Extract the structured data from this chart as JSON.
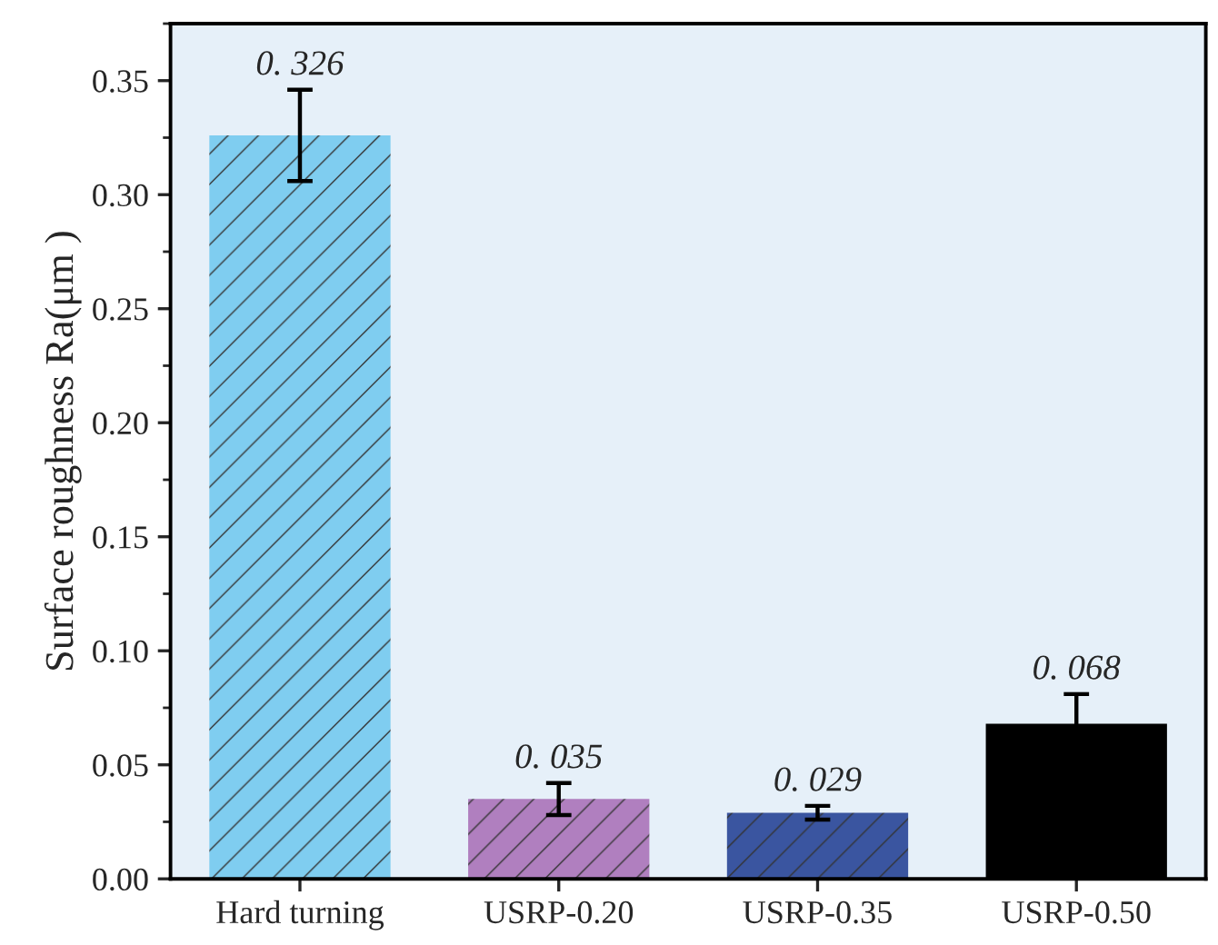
{
  "chart_data": {
    "type": "bar",
    "ylabel": "Surface roughness Ra(μm )",
    "categories": [
      "Hard turning",
      "USRP-0.20",
      "USRP-0.35",
      "USRP-0.50"
    ],
    "values": [
      0.326,
      0.035,
      0.029,
      0.068
    ],
    "errors": [
      0.02,
      0.007,
      0.003,
      0.013
    ],
    "colors": [
      "#7fcdf0",
      "#b07fbf",
      "#3a55a0",
      "#000000"
    ],
    "value_labels": [
      "0. 326",
      "0. 035",
      "0. 029",
      "0. 068"
    ],
    "ylim": [
      0,
      0.375
    ],
    "yticks": [
      {
        "value": 0,
        "label": "0.00"
      },
      {
        "value": 0.05,
        "label": "0.05"
      },
      {
        "value": 0.1,
        "label": "0.10"
      },
      {
        "value": 0.15,
        "label": "0.15"
      },
      {
        "value": 0.2,
        "label": "0.20"
      },
      {
        "value": 0.25,
        "label": "0.25"
      },
      {
        "value": 0.3,
        "label": "0.30"
      },
      {
        "value": 0.35,
        "label": "0.35"
      }
    ],
    "grid": false
  }
}
